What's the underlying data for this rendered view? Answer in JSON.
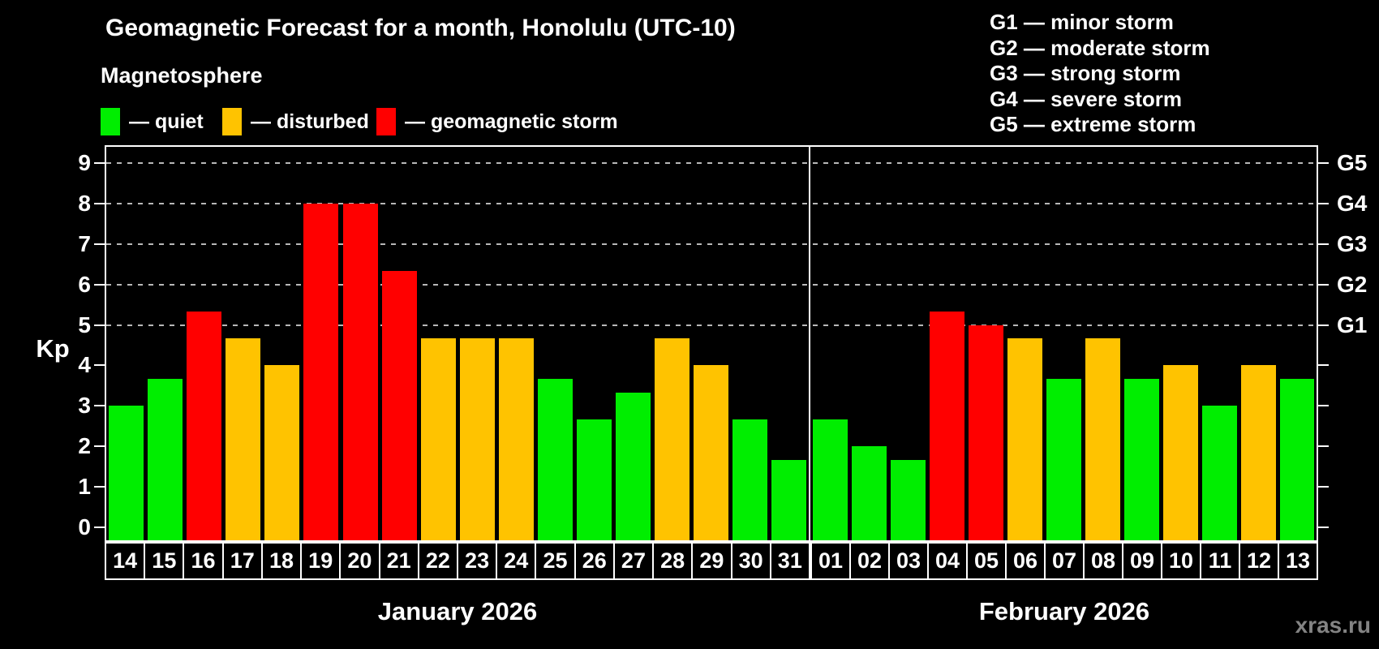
{
  "title": "Geomagnetic Forecast for a month, Honolulu (UTC-10)",
  "subtitle": "Magnetosphere",
  "legend": {
    "items": [
      {
        "key": "quiet",
        "label": "— quiet",
        "color": "#00ee00"
      },
      {
        "key": "disturbed",
        "label": "— disturbed",
        "color": "#ffc300"
      },
      {
        "key": "storm",
        "label": "— geomagnetic storm",
        "color": "#ff0000"
      }
    ]
  },
  "g_legend": [
    "G1 — minor storm",
    "G2 — moderate storm",
    "G3 — strong storm",
    "G4 — severe storm",
    "G5 — extreme storm"
  ],
  "watermark": "xras.ru",
  "colors": {
    "background": "#000000",
    "text": "#ffffff",
    "axis": "#ffffff",
    "gridline": "#b8b8b8",
    "watermark": "#838383"
  },
  "chart_data": {
    "type": "bar",
    "title": "Geomagnetic Forecast for a month, Honolulu (UTC-10)",
    "ylabel": "Kp",
    "ylim": [
      0,
      9
    ],
    "y_ticks": [
      0,
      1,
      2,
      3,
      4,
      5,
      6,
      7,
      8,
      9
    ],
    "gridlines_at": [
      5,
      6,
      7,
      8,
      9
    ],
    "grid_style": "dashed horizontal lines at Kp 5-9",
    "legend_position": "top",
    "right_axis_labels": [
      {
        "value": 5,
        "label": "G1"
      },
      {
        "value": 6,
        "label": "G2"
      },
      {
        "value": 7,
        "label": "G3"
      },
      {
        "value": 8,
        "label": "G4"
      },
      {
        "value": 9,
        "label": "G5"
      }
    ],
    "months": [
      {
        "label": "January 2026",
        "days": [
          "14",
          "15",
          "16",
          "17",
          "18",
          "19",
          "20",
          "21",
          "22",
          "23",
          "24",
          "25",
          "26",
          "27",
          "28",
          "29",
          "30",
          "31"
        ],
        "values": [
          3.0,
          3.67,
          5.33,
          4.67,
          4.0,
          8.0,
          8.0,
          6.33,
          4.67,
          4.67,
          4.67,
          3.67,
          2.67,
          3.33,
          4.67,
          4.0,
          2.67,
          1.67
        ],
        "status": [
          "quiet",
          "quiet",
          "storm",
          "disturbed",
          "disturbed",
          "storm",
          "storm",
          "storm",
          "disturbed",
          "disturbed",
          "disturbed",
          "quiet",
          "quiet",
          "quiet",
          "disturbed",
          "disturbed",
          "quiet",
          "quiet"
        ]
      },
      {
        "label": "February 2026",
        "days": [
          "01",
          "02",
          "03",
          "04",
          "05",
          "06",
          "07",
          "08",
          "09",
          "10",
          "11",
          "12",
          "13"
        ],
        "values": [
          2.67,
          2.0,
          1.67,
          5.33,
          5.0,
          4.67,
          3.67,
          4.67,
          3.67,
          4.0,
          3.0,
          4.0,
          3.67
        ],
        "status": [
          "quiet",
          "quiet",
          "quiet",
          "storm",
          "storm",
          "disturbed",
          "quiet",
          "disturbed",
          "quiet",
          "disturbed",
          "quiet",
          "disturbed",
          "quiet"
        ]
      }
    ]
  }
}
